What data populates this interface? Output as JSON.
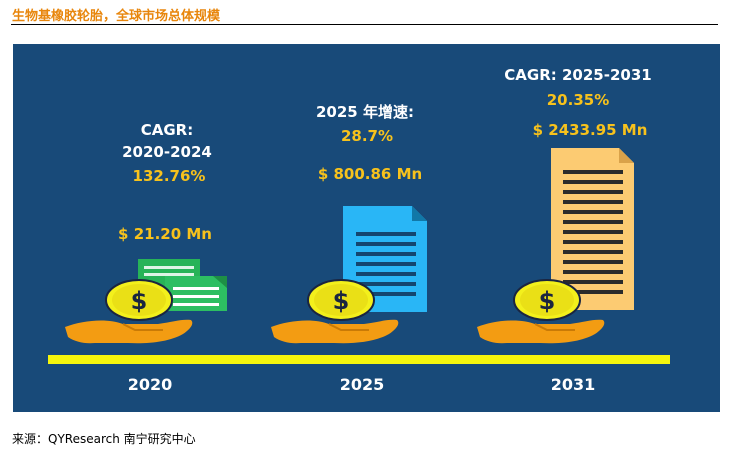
{
  "title": "生物基橡胶轮胎，全球市场总体规模",
  "source": "来源：QYResearch 南宁研究中心",
  "colors": {
    "panel": "#184a79",
    "label_yellow": "#F7C21C",
    "axis": "#F5F50C",
    "hand": "#F39C12",
    "coin": "#F3F01C",
    "doc_green": "#2DBE62",
    "doc_blue": "#29B6F6",
    "doc_peach": "#FCCB72"
  },
  "chart_data": {
    "type": "infographic",
    "title": "生物基橡胶轮胎，全球市场总体规模",
    "categories": [
      "2020",
      "2025",
      "2031"
    ],
    "values": [
      21.2,
      800.86,
      2433.95
    ],
    "unit": "Mn",
    "value_labels": [
      "$ 21.20 Mn",
      "$ 800.86 Mn",
      "$ 2433.95 Mn"
    ],
    "rate_labels": [
      {
        "line1": "CAGR:",
        "line2": "2020-2024",
        "rate": "132.76%"
      },
      {
        "line1": "2025 年增速:",
        "line2": "",
        "rate": "28.7%"
      },
      {
        "line1": "CAGR: 2025-2031",
        "line2": "",
        "rate": "20.35%"
      }
    ],
    "icons": [
      "money-document-green",
      "document-blue",
      "document-peach"
    ]
  }
}
